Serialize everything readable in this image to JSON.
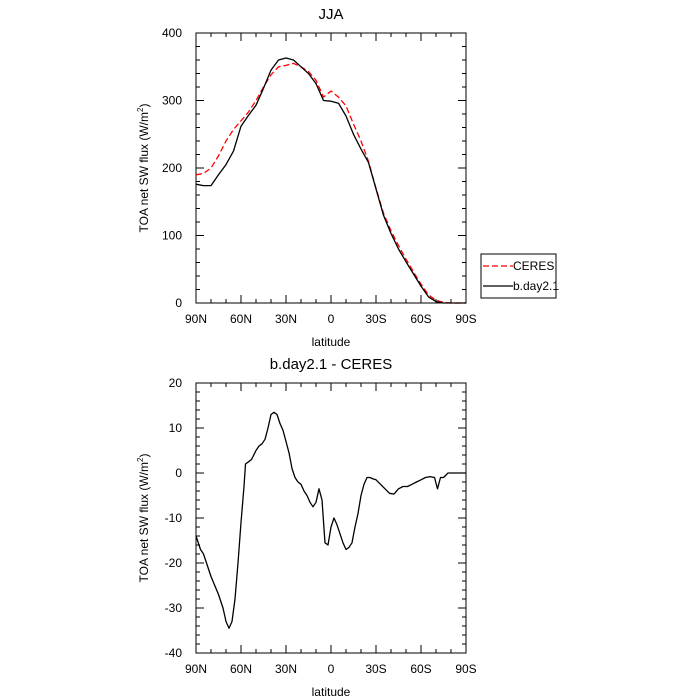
{
  "chart_data": [
    {
      "type": "line",
      "title": "JJA",
      "xlabel": "latitude",
      "ylabel": "TOA net SW flux (W/m",
      "ylabel_sup": "2",
      "ylabel_close": ")",
      "xlim": [
        90,
        -90
      ],
      "ylim": [
        0,
        400
      ],
      "xticks": [
        90,
        60,
        30,
        0,
        -30,
        -60,
        -90
      ],
      "xtick_labels": [
        "90N",
        "60N",
        "30N",
        "0",
        "30S",
        "60S",
        "90S"
      ],
      "yticks": [
        0,
        100,
        200,
        300,
        400
      ],
      "ytick_labels": [
        "0",
        "100",
        "200",
        "300",
        "400"
      ],
      "legend": {
        "placement": "right",
        "entries": [
          {
            "name": "CERES",
            "color": "#ff0000",
            "dashed": true
          },
          {
            "name": "b.day2.1",
            "color": "#000000",
            "dashed": false
          }
        ]
      },
      "series": [
        {
          "name": "CERES",
          "color": "#ff0000",
          "dashed": true,
          "x": [
            90,
            85,
            80,
            75,
            70,
            65,
            60,
            55,
            50,
            45,
            40,
            35,
            30,
            25,
            20,
            15,
            10,
            5,
            0,
            -5,
            -10,
            -15,
            -20,
            -25,
            -30,
            -35,
            -40,
            -45,
            -50,
            -55,
            -60,
            -65,
            -70,
            -75,
            -80,
            -85,
            -90
          ],
          "y": [
            190,
            192,
            200,
            218,
            240,
            257,
            270,
            283,
            300,
            320,
            338,
            350,
            352,
            355,
            350,
            343,
            330,
            305,
            314,
            305,
            292,
            265,
            240,
            210,
            170,
            133,
            107,
            85,
            65,
            46,
            28,
            12,
            4,
            1,
            0,
            0,
            0
          ]
        },
        {
          "name": "b.day2.1",
          "color": "#000000",
          "dashed": false,
          "x": [
            90,
            85,
            80,
            75,
            70,
            65,
            60,
            55,
            50,
            45,
            40,
            35,
            30,
            25,
            20,
            15,
            10,
            5,
            0,
            -5,
            -10,
            -15,
            -20,
            -25,
            -30,
            -35,
            -40,
            -45,
            -50,
            -55,
            -60,
            -65,
            -70,
            -75,
            -80,
            -85,
            -90
          ],
          "y": [
            176,
            174,
            174,
            190,
            205,
            225,
            262,
            278,
            293,
            318,
            345,
            360,
            363,
            360,
            350,
            340,
            325,
            300,
            299,
            296,
            277,
            250,
            228,
            208,
            169,
            130,
            103,
            80,
            61,
            43,
            25,
            9,
            2,
            0,
            0,
            0,
            0
          ]
        }
      ]
    },
    {
      "type": "line",
      "title": "b.day2.1 - CERES",
      "xlabel": "latitude",
      "ylabel": "TOA net SW flux (W/m",
      "ylabel_sup": "2",
      "ylabel_close": ")",
      "xlim": [
        90,
        -90
      ],
      "ylim": [
        -40,
        20
      ],
      "xticks": [
        90,
        60,
        30,
        0,
        -30,
        -60,
        -90
      ],
      "xtick_labels": [
        "90N",
        "60N",
        "30N",
        "0",
        "30S",
        "60S",
        "90S"
      ],
      "yticks": [
        -40,
        -30,
        -20,
        -10,
        0,
        10,
        20
      ],
      "ytick_labels": [
        "-40",
        "-30",
        "-20",
        "-10",
        "0",
        "10",
        "20"
      ],
      "series": [
        {
          "name": "b.day2.1 - CERES",
          "color": "#000000",
          "dashed": false,
          "x": [
            90,
            87,
            85,
            83,
            80,
            75,
            72,
            70,
            68,
            66,
            64,
            62,
            60,
            58,
            57,
            55,
            53,
            50,
            48,
            46,
            44,
            42,
            40,
            38,
            36,
            34,
            32,
            30,
            28,
            26,
            24,
            22,
            20,
            18,
            16,
            14,
            12,
            10,
            8,
            6,
            4,
            2,
            0,
            -2,
            -4,
            -6,
            -8,
            -10,
            -12,
            -14,
            -16,
            -18,
            -20,
            -22,
            -24,
            -26,
            -28,
            -30,
            -33,
            -36,
            -39,
            -42,
            -45,
            -48,
            -51,
            -54,
            -57,
            -60,
            -63,
            -66,
            -69,
            -71,
            -73,
            -75,
            -78,
            -81,
            -85,
            -90
          ],
          "y": [
            -14,
            -17,
            -18,
            -20,
            -23,
            -27,
            -30,
            -33,
            -34.5,
            -33,
            -28,
            -20,
            -11,
            -3,
            2,
            2.5,
            3,
            5,
            6,
            6.5,
            7.5,
            10,
            13,
            13.5,
            13,
            11,
            9.5,
            7,
            4.5,
            1,
            -1,
            -2,
            -2.5,
            -4,
            -5,
            -6.5,
            -7.5,
            -6.5,
            -3.5,
            -6,
            -15.5,
            -16,
            -12,
            -10,
            -11.5,
            -13.5,
            -15.5,
            -17,
            -16.5,
            -15.5,
            -12,
            -9,
            -5,
            -2.5,
            -1,
            -1,
            -1.3,
            -1.5,
            -2.5,
            -3.5,
            -4.5,
            -4.7,
            -3.5,
            -3,
            -3,
            -2.5,
            -2,
            -1.5,
            -1,
            -0.8,
            -1,
            -3.5,
            -1,
            -1,
            0,
            0,
            0,
            0
          ]
        }
      ]
    }
  ]
}
